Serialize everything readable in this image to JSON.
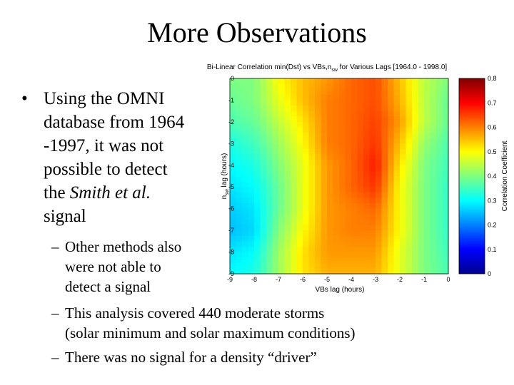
{
  "slide": {
    "title": "More Observations",
    "bullet": {
      "marker": "•",
      "text_lines": [
        "Using the OMNI",
        "database from 1964",
        "-1997, it was not",
        "possible to detect",
        "the ",
        "Smith et al.",
        "signal"
      ]
    },
    "sub_bullets": [
      {
        "marker": "–",
        "lines": [
          "Other methods also",
          "were not able to",
          "detect a signal"
        ]
      },
      {
        "marker": "–",
        "lines": [
          "This analysis covered 440 moderate storms",
          "(solar minimum and solar maximum conditions)"
        ]
      },
      {
        "marker": "–",
        "lines": [
          "There was no signal for a density “driver”"
        ]
      }
    ]
  },
  "chart_data": {
    "type": "heatmap",
    "title_parts": {
      "pre": "Bi-Linear Correlation min(Dst) vs VBs,n",
      "sub": "sw",
      "post": " for Various Lags [1964.0 - 1998.0]"
    },
    "xlabel": "VBs lag (hours)",
    "ylabel_main": "n",
    "ylabel_sub": "sw",
    "ylabel_rest": " lag (hours)",
    "x_ticks": [
      -9,
      -8,
      -7,
      -6,
      -5,
      -4,
      -3,
      -2,
      -1,
      0
    ],
    "y_ticks": [
      0,
      -1,
      -2,
      -3,
      -4,
      -5,
      -6,
      -7,
      -8,
      -9
    ],
    "xlim": [
      -9,
      0
    ],
    "ylim": [
      -9,
      0
    ],
    "colorbar": {
      "label": "Correlation Coefficient",
      "ticks": [
        0.8,
        0.7,
        0.6,
        0.5,
        0.4,
        0.3,
        0.2,
        0.1,
        0
      ],
      "range": [
        0,
        0.8
      ],
      "colormap": "jet"
    },
    "grid_y_rows_top_to_bottom": [
      0,
      -1,
      -2,
      -3,
      -4,
      -5,
      -6,
      -7,
      -8,
      -9
    ],
    "grid_x_cols": [
      -9,
      -8,
      -7,
      -6,
      -5,
      -4,
      -3,
      -2,
      -1,
      0
    ],
    "values": [
      [
        0.4,
        0.4,
        0.5,
        0.55,
        0.58,
        0.62,
        0.64,
        0.55,
        0.45,
        0.4
      ],
      [
        0.38,
        0.4,
        0.48,
        0.55,
        0.6,
        0.62,
        0.64,
        0.56,
        0.45,
        0.38
      ],
      [
        0.36,
        0.38,
        0.45,
        0.52,
        0.6,
        0.62,
        0.65,
        0.58,
        0.45,
        0.38
      ],
      [
        0.32,
        0.35,
        0.42,
        0.5,
        0.6,
        0.62,
        0.66,
        0.55,
        0.42,
        0.36
      ],
      [
        0.3,
        0.32,
        0.4,
        0.48,
        0.58,
        0.62,
        0.68,
        0.52,
        0.4,
        0.35
      ],
      [
        0.28,
        0.3,
        0.38,
        0.48,
        0.58,
        0.62,
        0.66,
        0.5,
        0.4,
        0.34
      ],
      [
        0.26,
        0.28,
        0.38,
        0.48,
        0.58,
        0.6,
        0.62,
        0.5,
        0.4,
        0.34
      ],
      [
        0.25,
        0.27,
        0.4,
        0.5,
        0.58,
        0.6,
        0.6,
        0.5,
        0.4,
        0.34
      ],
      [
        0.28,
        0.3,
        0.42,
        0.52,
        0.58,
        0.58,
        0.58,
        0.48,
        0.4,
        0.35
      ],
      [
        0.3,
        0.32,
        0.42,
        0.52,
        0.56,
        0.56,
        0.56,
        0.48,
        0.4,
        0.36
      ]
    ]
  }
}
